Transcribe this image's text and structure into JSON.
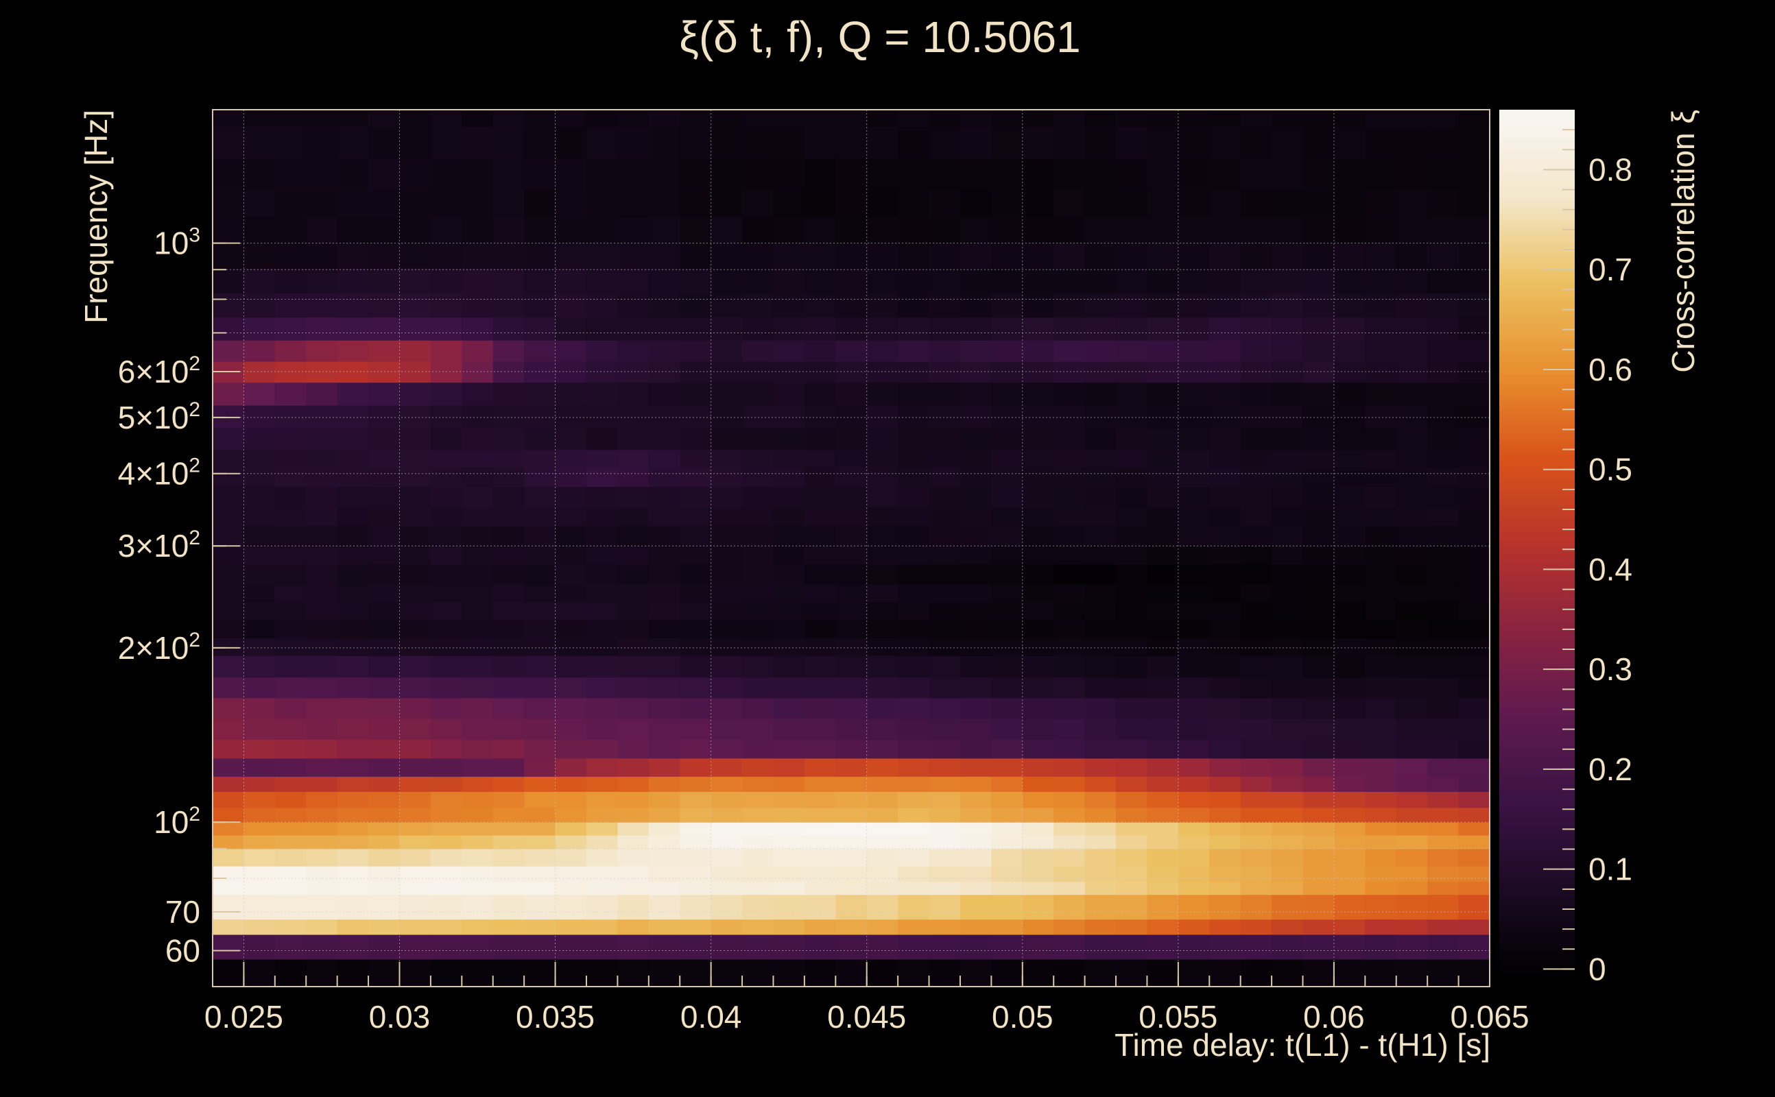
{
  "chart_data": {
    "type": "heatmap",
    "title": "ξ(δ t, f), Q = 10.5061",
    "xlabel": "Time delay: t(L1) - t(H1) [s]",
    "ylabel": "Frequency [Hz]",
    "colorbar_label": "Cross-correlation ξ",
    "xlim": [
      0.024,
      0.065
    ],
    "ylim_hz": [
      52,
      1700
    ],
    "y_scale": "log",
    "grid": true,
    "x_ticks": [
      {
        "value": 0.025,
        "label": "0.025"
      },
      {
        "value": 0.03,
        "label": "0.03"
      },
      {
        "value": 0.035,
        "label": "0.035"
      },
      {
        "value": 0.04,
        "label": "0.04"
      },
      {
        "value": 0.045,
        "label": "0.045"
      },
      {
        "value": 0.05,
        "label": "0.05"
      },
      {
        "value": 0.055,
        "label": "0.055"
      },
      {
        "value": 0.06,
        "label": "0.06"
      },
      {
        "value": 0.065,
        "label": "0.065"
      }
    ],
    "y_ticks": [
      {
        "value": 60,
        "label": "60"
      },
      {
        "value": 70,
        "label": "70"
      },
      {
        "value": 100,
        "label": "10",
        "exp": "2"
      },
      {
        "value": 200,
        "label": "2×10",
        "exp": "2"
      },
      {
        "value": 300,
        "label": "3×10",
        "exp": "2"
      },
      {
        "value": 400,
        "label": "4×10",
        "exp": "2"
      },
      {
        "value": 500,
        "label": "5×10",
        "exp": "2"
      },
      {
        "value": 600,
        "label": "6×10",
        "exp": "2"
      },
      {
        "value": 1000,
        "label": "10",
        "exp": "3"
      }
    ],
    "colorbar_range": [
      -0.01,
      0.86
    ],
    "colorbar_ticks": [
      {
        "value": 0,
        "label": "0"
      },
      {
        "value": 0.1,
        "label": "0.1"
      },
      {
        "value": 0.2,
        "label": "0.2"
      },
      {
        "value": 0.3,
        "label": "0.3"
      },
      {
        "value": 0.4,
        "label": "0.4"
      },
      {
        "value": 0.5,
        "label": "0.5"
      },
      {
        "value": 0.6,
        "label": "0.6"
      },
      {
        "value": 0.7,
        "label": "0.7"
      },
      {
        "value": 0.8,
        "label": "0.8"
      }
    ],
    "colormap": [
      "#000004",
      "#1b0c41",
      "#4a0c6b",
      "#781c6d",
      "#a52c60",
      "#cf4446",
      "#ed6925",
      "#fb9b06",
      "#f7d13d",
      "#fcffa4"
    ],
    "colormap_display": [
      "#000000",
      "#1a0a22",
      "#3a1244",
      "#5e1a4f",
      "#8a2341",
      "#b8332b",
      "#d9541a",
      "#e8902f",
      "#ecc060",
      "#f4e7cc",
      "#f9f6f3"
    ],
    "band_edges_hz": [
      52,
      58,
      64,
      68,
      75,
      79,
      84,
      90,
      95,
      100,
      106,
      113,
      120,
      129,
      139,
      151,
      164,
      178,
      194,
      208,
      224,
      240,
      258,
      279,
      300,
      325,
      350,
      380,
      410,
      440,
      480,
      525,
      575,
      625,
      680,
      745,
      820,
      905,
      1000,
      1110,
      1240,
      1400,
      1590,
      1700
    ],
    "x_edges": [
      0.024,
      0.025,
      0.026,
      0.027,
      0.028,
      0.029,
      0.03,
      0.031,
      0.032,
      0.033,
      0.034,
      0.035,
      0.036,
      0.037,
      0.038,
      0.039,
      0.04,
      0.041,
      0.042,
      0.043,
      0.044,
      0.045,
      0.046,
      0.047,
      0.048,
      0.049,
      0.05,
      0.051,
      0.052,
      0.053,
      0.054,
      0.055,
      0.056,
      0.057,
      0.058,
      0.059,
      0.06,
      0.061,
      0.062,
      0.063,
      0.064,
      0.065
    ],
    "band_profiles": [
      [
        [
          0.024,
          0.02
        ],
        [
          0.065,
          0.02
        ]
      ],
      [
        [
          0.024,
          0.2
        ],
        [
          0.065,
          0.17
        ]
      ],
      [
        [
          0.024,
          0.72
        ],
        [
          0.04,
          0.66
        ],
        [
          0.05,
          0.6
        ],
        [
          0.06,
          0.45
        ],
        [
          0.065,
          0.4
        ]
      ],
      [
        [
          0.024,
          0.8
        ],
        [
          0.03,
          0.8
        ],
        [
          0.04,
          0.76
        ],
        [
          0.05,
          0.68
        ],
        [
          0.06,
          0.54
        ],
        [
          0.065,
          0.5
        ]
      ],
      [
        [
          0.024,
          0.84
        ],
        [
          0.03,
          0.84
        ],
        [
          0.04,
          0.82
        ],
        [
          0.05,
          0.76
        ],
        [
          0.06,
          0.62
        ],
        [
          0.065,
          0.55
        ]
      ],
      [
        [
          0.024,
          0.84
        ],
        [
          0.035,
          0.82
        ],
        [
          0.045,
          0.78
        ],
        [
          0.052,
          0.72
        ],
        [
          0.06,
          0.62
        ],
        [
          0.065,
          0.56
        ]
      ],
      [
        [
          0.024,
          0.72
        ],
        [
          0.034,
          0.76
        ],
        [
          0.04,
          0.8
        ],
        [
          0.046,
          0.8
        ],
        [
          0.052,
          0.72
        ],
        [
          0.06,
          0.62
        ],
        [
          0.065,
          0.56
        ]
      ],
      [
        [
          0.024,
          0.62
        ],
        [
          0.035,
          0.72
        ],
        [
          0.04,
          0.84
        ],
        [
          0.048,
          0.84
        ],
        [
          0.053,
          0.74
        ],
        [
          0.06,
          0.64
        ],
        [
          0.065,
          0.6
        ]
      ],
      [
        [
          0.024,
          0.58
        ],
        [
          0.035,
          0.66
        ],
        [
          0.04,
          0.85
        ],
        [
          0.048,
          0.85
        ],
        [
          0.052,
          0.74
        ],
        [
          0.06,
          0.62
        ],
        [
          0.065,
          0.55
        ]
      ],
      [
        [
          0.024,
          0.52
        ],
        [
          0.035,
          0.6
        ],
        [
          0.04,
          0.66
        ],
        [
          0.048,
          0.66
        ],
        [
          0.055,
          0.55
        ],
        [
          0.065,
          0.45
        ]
      ],
      [
        [
          0.024,
          0.5
        ],
        [
          0.035,
          0.6
        ],
        [
          0.04,
          0.64
        ],
        [
          0.048,
          0.64
        ],
        [
          0.055,
          0.52
        ],
        [
          0.065,
          0.38
        ]
      ],
      [
        [
          0.024,
          0.4
        ],
        [
          0.03,
          0.46
        ],
        [
          0.035,
          0.52
        ],
        [
          0.04,
          0.56
        ],
        [
          0.048,
          0.58
        ],
        [
          0.055,
          0.44
        ],
        [
          0.06,
          0.3
        ],
        [
          0.065,
          0.22
        ]
      ],
      [
        [
          0.024,
          0.24
        ],
        [
          0.033,
          0.24
        ],
        [
          0.036,
          0.36
        ],
        [
          0.04,
          0.44
        ],
        [
          0.045,
          0.48
        ],
        [
          0.05,
          0.46
        ],
        [
          0.055,
          0.38
        ],
        [
          0.06,
          0.28
        ],
        [
          0.065,
          0.22
        ]
      ],
      [
        [
          0.024,
          0.36
        ],
        [
          0.03,
          0.34
        ],
        [
          0.036,
          0.28
        ],
        [
          0.042,
          0.24
        ],
        [
          0.048,
          0.2
        ],
        [
          0.055,
          0.14
        ],
        [
          0.06,
          0.1
        ],
        [
          0.065,
          0.08
        ]
      ],
      [
        [
          0.024,
          0.32
        ],
        [
          0.03,
          0.3
        ],
        [
          0.036,
          0.26
        ],
        [
          0.042,
          0.22
        ],
        [
          0.048,
          0.18
        ],
        [
          0.055,
          0.12
        ],
        [
          0.06,
          0.1
        ],
        [
          0.065,
          0.07
        ]
      ],
      [
        [
          0.024,
          0.3
        ],
        [
          0.03,
          0.28
        ],
        [
          0.036,
          0.24
        ],
        [
          0.042,
          0.2
        ],
        [
          0.048,
          0.16
        ],
        [
          0.055,
          0.11
        ],
        [
          0.06,
          0.08
        ],
        [
          0.065,
          0.06
        ]
      ],
      [
        [
          0.024,
          0.22
        ],
        [
          0.03,
          0.2
        ],
        [
          0.036,
          0.17
        ],
        [
          0.042,
          0.13
        ],
        [
          0.048,
          0.1
        ],
        [
          0.055,
          0.07
        ],
        [
          0.06,
          0.06
        ],
        [
          0.065,
          0.04
        ]
      ],
      [
        [
          0.024,
          0.15
        ],
        [
          0.03,
          0.13
        ],
        [
          0.036,
          0.11
        ],
        [
          0.042,
          0.09
        ],
        [
          0.048,
          0.07
        ],
        [
          0.055,
          0.05
        ],
        [
          0.065,
          0.03
        ]
      ],
      [
        [
          0.024,
          0.08
        ],
        [
          0.035,
          0.07
        ],
        [
          0.045,
          0.05
        ],
        [
          0.055,
          0.03
        ],
        [
          0.065,
          0.02
        ]
      ],
      [
        [
          0.024,
          0.05
        ],
        [
          0.035,
          0.06
        ],
        [
          0.045,
          0.03
        ],
        [
          0.055,
          0.02
        ],
        [
          0.065,
          0.01
        ]
      ],
      [
        [
          0.024,
          0.06
        ],
        [
          0.035,
          0.08
        ],
        [
          0.045,
          0.04
        ],
        [
          0.055,
          0.02
        ],
        [
          0.065,
          0.01
        ]
      ],
      [
        [
          0.024,
          0.07
        ],
        [
          0.035,
          0.07
        ],
        [
          0.045,
          0.05
        ],
        [
          0.05,
          0.03
        ],
        [
          0.055,
          0.02
        ],
        [
          0.065,
          0.02
        ]
      ],
      [
        [
          0.024,
          0.07
        ],
        [
          0.035,
          0.06
        ],
        [
          0.045,
          0.04
        ],
        [
          0.05,
          0.01
        ],
        [
          0.055,
          0.01
        ],
        [
          0.065,
          0.02
        ]
      ],
      [
        [
          0.024,
          0.08
        ],
        [
          0.035,
          0.07
        ],
        [
          0.045,
          0.05
        ],
        [
          0.05,
          0.03
        ],
        [
          0.055,
          0.03
        ],
        [
          0.065,
          0.03
        ]
      ],
      [
        [
          0.024,
          0.07
        ],
        [
          0.035,
          0.06
        ],
        [
          0.045,
          0.05
        ],
        [
          0.055,
          0.04
        ],
        [
          0.065,
          0.04
        ]
      ],
      [
        [
          0.024,
          0.08
        ],
        [
          0.035,
          0.08
        ],
        [
          0.045,
          0.06
        ],
        [
          0.055,
          0.05
        ],
        [
          0.065,
          0.05
        ]
      ],
      [
        [
          0.024,
          0.08
        ],
        [
          0.035,
          0.09
        ],
        [
          0.045,
          0.07
        ],
        [
          0.055,
          0.05
        ],
        [
          0.065,
          0.05
        ]
      ],
      [
        [
          0.024,
          0.1
        ],
        [
          0.033,
          0.1
        ],
        [
          0.037,
          0.15
        ],
        [
          0.04,
          0.1
        ],
        [
          0.045,
          0.07
        ],
        [
          0.055,
          0.06
        ],
        [
          0.065,
          0.05
        ]
      ],
      [
        [
          0.024,
          0.1
        ],
        [
          0.033,
          0.11
        ],
        [
          0.037,
          0.14
        ],
        [
          0.04,
          0.09
        ],
        [
          0.045,
          0.07
        ],
        [
          0.055,
          0.06
        ],
        [
          0.065,
          0.05
        ]
      ],
      [
        [
          0.024,
          0.13
        ],
        [
          0.03,
          0.1
        ],
        [
          0.035,
          0.08
        ],
        [
          0.045,
          0.06
        ],
        [
          0.055,
          0.05
        ],
        [
          0.065,
          0.04
        ]
      ],
      [
        [
          0.024,
          0.15
        ],
        [
          0.028,
          0.12
        ],
        [
          0.035,
          0.08
        ],
        [
          0.045,
          0.07
        ],
        [
          0.055,
          0.05
        ],
        [
          0.065,
          0.04
        ]
      ],
      [
        [
          0.024,
          0.3
        ],
        [
          0.026,
          0.24
        ],
        [
          0.029,
          0.16
        ],
        [
          0.035,
          0.08
        ],
        [
          0.045,
          0.06
        ],
        [
          0.055,
          0.04
        ],
        [
          0.065,
          0.04
        ]
      ],
      [
        [
          0.024,
          0.3
        ],
        [
          0.025,
          0.4
        ],
        [
          0.028,
          0.42
        ],
        [
          0.031,
          0.38
        ],
        [
          0.034,
          0.16
        ],
        [
          0.04,
          0.08
        ],
        [
          0.05,
          0.1
        ],
        [
          0.056,
          0.12
        ],
        [
          0.065,
          0.06
        ]
      ],
      [
        [
          0.024,
          0.25
        ],
        [
          0.027,
          0.32
        ],
        [
          0.03,
          0.36
        ],
        [
          0.032,
          0.34
        ],
        [
          0.034,
          0.18
        ],
        [
          0.04,
          0.1
        ],
        [
          0.048,
          0.14
        ],
        [
          0.054,
          0.16
        ],
        [
          0.06,
          0.1
        ],
        [
          0.065,
          0.06
        ]
      ],
      [
        [
          0.024,
          0.14
        ],
        [
          0.028,
          0.18
        ],
        [
          0.032,
          0.16
        ],
        [
          0.036,
          0.08
        ],
        [
          0.045,
          0.08
        ],
        [
          0.052,
          0.1
        ],
        [
          0.058,
          0.12
        ],
        [
          0.065,
          0.06
        ]
      ],
      [
        [
          0.024,
          0.1
        ],
        [
          0.03,
          0.12
        ],
        [
          0.034,
          0.1
        ],
        [
          0.04,
          0.06
        ],
        [
          0.05,
          0.05
        ],
        [
          0.058,
          0.08
        ],
        [
          0.065,
          0.06
        ]
      ],
      [
        [
          0.024,
          0.07
        ],
        [
          0.032,
          0.1
        ],
        [
          0.04,
          0.06
        ],
        [
          0.05,
          0.04
        ],
        [
          0.06,
          0.06
        ],
        [
          0.065,
          0.04
        ]
      ],
      [
        [
          0.024,
          0.05
        ],
        [
          0.035,
          0.06
        ],
        [
          0.045,
          0.04
        ],
        [
          0.055,
          0.05
        ],
        [
          0.065,
          0.04
        ]
      ],
      [
        [
          0.024,
          0.04
        ],
        [
          0.035,
          0.05
        ],
        [
          0.045,
          0.03
        ],
        [
          0.055,
          0.04
        ],
        [
          0.065,
          0.03
        ]
      ],
      [
        [
          0.024,
          0.04
        ],
        [
          0.035,
          0.04
        ],
        [
          0.045,
          0.02
        ],
        [
          0.055,
          0.03
        ],
        [
          0.065,
          0.03
        ]
      ],
      [
        [
          0.024,
          0.05
        ],
        [
          0.035,
          0.04
        ],
        [
          0.045,
          0.02
        ],
        [
          0.055,
          0.03
        ],
        [
          0.065,
          0.02
        ]
      ],
      [
        [
          0.024,
          0.05
        ],
        [
          0.035,
          0.04
        ],
        [
          0.045,
          0.03
        ],
        [
          0.055,
          0.04
        ],
        [
          0.065,
          0.03
        ]
      ],
      [
        [
          0.024,
          0.04
        ],
        [
          0.035,
          0.04
        ],
        [
          0.045,
          0.03
        ],
        [
          0.055,
          0.03
        ],
        [
          0.065,
          0.03
        ]
      ]
    ]
  }
}
